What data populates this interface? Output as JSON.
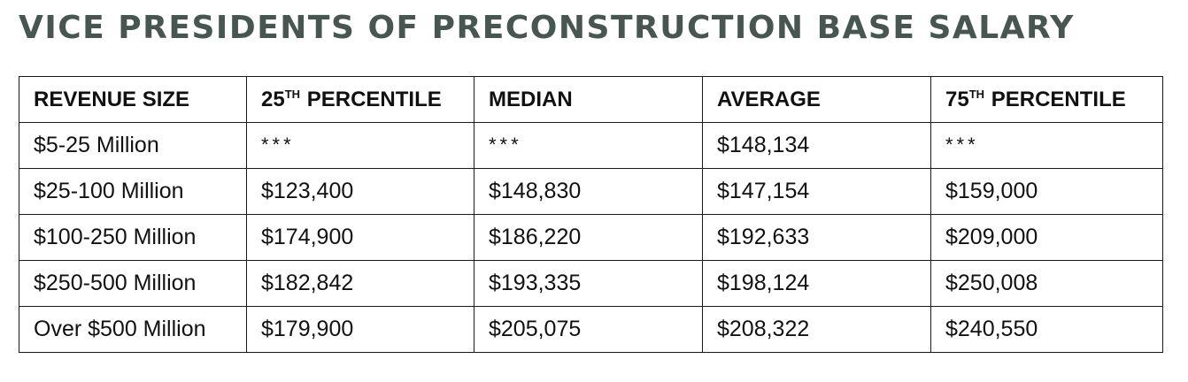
{
  "title": "VICE PRESIDENTS OF PRECONSTRUCTION BASE SALARY",
  "table": {
    "columns": [
      {
        "label": "REVENUE SIZE",
        "sup": "",
        "rest": ""
      },
      {
        "label": "25",
        "sup": "TH",
        "rest": " PERCENTILE"
      },
      {
        "label": "MEDIAN",
        "sup": "",
        "rest": ""
      },
      {
        "label": "AVERAGE",
        "sup": "",
        "rest": ""
      },
      {
        "label": "75",
        "sup": "TH",
        "rest": " PERCENTILE"
      }
    ],
    "rows": [
      [
        "$5-25 Million",
        "***",
        "***",
        "$148,134",
        "***"
      ],
      [
        "$25-100 Million",
        "$123,400",
        "$148,830",
        "$147,154",
        "$159,000"
      ],
      [
        "$100-250 Million",
        "$174,900",
        "$186,220",
        "$192,633",
        "$209,000"
      ],
      [
        "$250-500 Million",
        "$182,842",
        "$193,335",
        "$198,124",
        "$250,008"
      ],
      [
        "Over $500 Million",
        "$179,900",
        "$205,075",
        "$208,322",
        "$240,550"
      ]
    ]
  }
}
